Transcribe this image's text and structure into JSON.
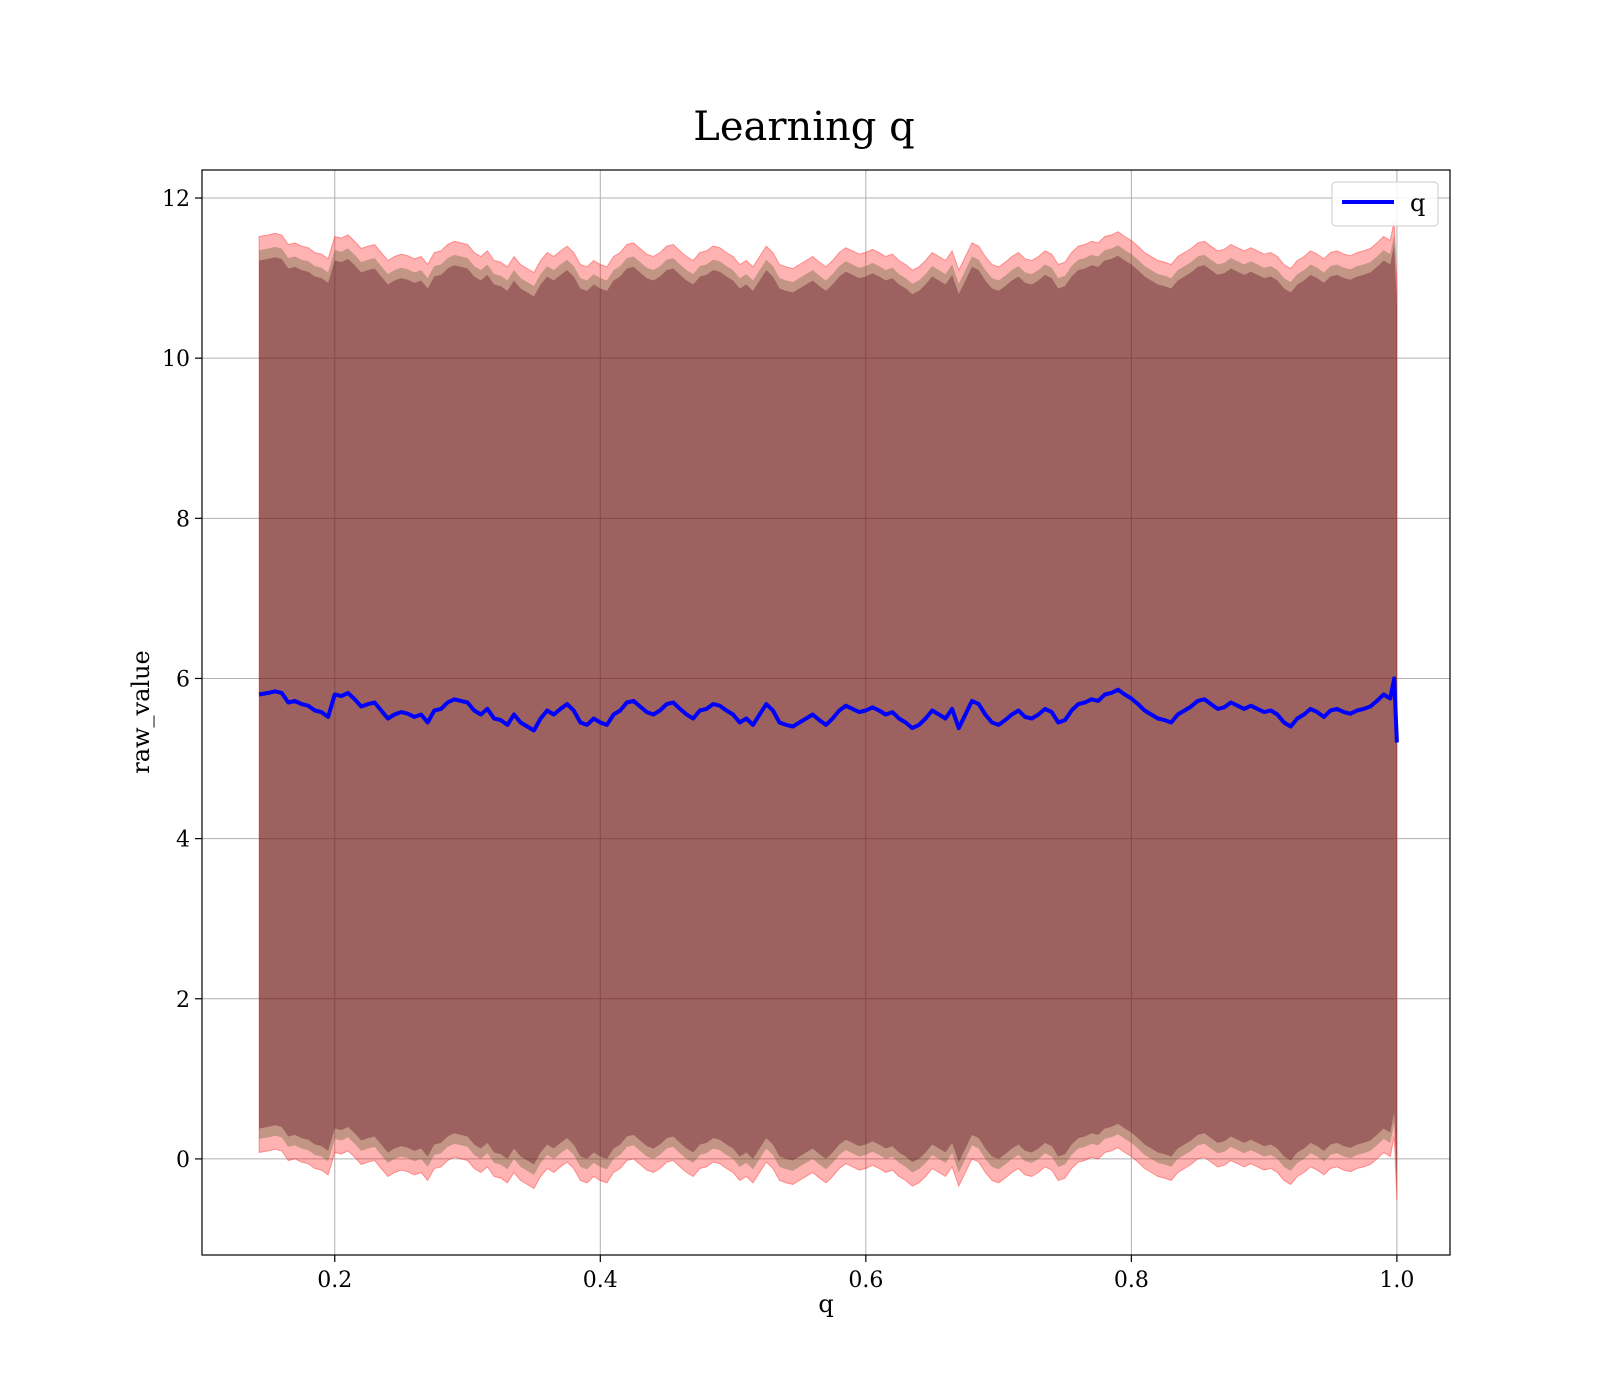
{
  "chart_data": {
    "type": "line",
    "title": "Learning q",
    "xlabel": "q",
    "ylabel": "raw_value",
    "xlim": [
      0.1,
      1.04
    ],
    "ylim": [
      -1.2,
      12.35
    ],
    "xticks": [
      0.2,
      0.4,
      0.6,
      0.8,
      1.0
    ],
    "xtick_labels": [
      "0.2",
      "0.4",
      "0.6",
      "0.8",
      "1.0"
    ],
    "yticks": [
      0,
      2,
      4,
      6,
      8,
      10,
      12
    ],
    "ytick_labels": [
      "0",
      "2",
      "4",
      "6",
      "8",
      "10",
      "12"
    ],
    "grid": true,
    "legend": {
      "position": "top-right",
      "entries": [
        "q"
      ]
    },
    "colors": {
      "line": "#0000ff",
      "outer_band": "#ff0000",
      "inner_band": "#4f5f2f",
      "core_band": "#58001a"
    },
    "series": [
      {
        "name": "q",
        "x": [
          0.143,
          0.15,
          0.155,
          0.16,
          0.165,
          0.17,
          0.175,
          0.18,
          0.185,
          0.19,
          0.195,
          0.2,
          0.205,
          0.21,
          0.215,
          0.22,
          0.225,
          0.23,
          0.235,
          0.24,
          0.245,
          0.25,
          0.255,
          0.26,
          0.265,
          0.27,
          0.275,
          0.28,
          0.285,
          0.29,
          0.295,
          0.3,
          0.305,
          0.31,
          0.315,
          0.32,
          0.325,
          0.33,
          0.335,
          0.34,
          0.345,
          0.35,
          0.355,
          0.36,
          0.365,
          0.37,
          0.375,
          0.38,
          0.385,
          0.39,
          0.395,
          0.4,
          0.405,
          0.41,
          0.415,
          0.42,
          0.425,
          0.43,
          0.435,
          0.44,
          0.445,
          0.45,
          0.455,
          0.46,
          0.465,
          0.47,
          0.475,
          0.48,
          0.485,
          0.49,
          0.495,
          0.5,
          0.505,
          0.51,
          0.515,
          0.52,
          0.525,
          0.53,
          0.535,
          0.54,
          0.545,
          0.55,
          0.555,
          0.56,
          0.565,
          0.57,
          0.575,
          0.58,
          0.585,
          0.59,
          0.595,
          0.6,
          0.605,
          0.61,
          0.615,
          0.62,
          0.625,
          0.63,
          0.635,
          0.64,
          0.645,
          0.65,
          0.655,
          0.66,
          0.665,
          0.67,
          0.675,
          0.68,
          0.685,
          0.69,
          0.695,
          0.7,
          0.705,
          0.71,
          0.715,
          0.72,
          0.725,
          0.73,
          0.735,
          0.74,
          0.745,
          0.75,
          0.755,
          0.76,
          0.765,
          0.77,
          0.775,
          0.78,
          0.785,
          0.79,
          0.795,
          0.8,
          0.805,
          0.81,
          0.815,
          0.82,
          0.825,
          0.83,
          0.835,
          0.84,
          0.845,
          0.85,
          0.855,
          0.86,
          0.865,
          0.87,
          0.875,
          0.88,
          0.885,
          0.89,
          0.895,
          0.9,
          0.905,
          0.91,
          0.915,
          0.92,
          0.925,
          0.93,
          0.935,
          0.94,
          0.945,
          0.95,
          0.955,
          0.96,
          0.965,
          0.97,
          0.975,
          0.98,
          0.985,
          0.99,
          0.995,
          0.998,
          1.0
        ],
        "y": [
          5.8,
          5.82,
          5.84,
          5.82,
          5.7,
          5.72,
          5.68,
          5.66,
          5.6,
          5.58,
          5.52,
          5.8,
          5.78,
          5.82,
          5.74,
          5.65,
          5.68,
          5.7,
          5.6,
          5.5,
          5.55,
          5.58,
          5.56,
          5.52,
          5.55,
          5.45,
          5.6,
          5.62,
          5.7,
          5.74,
          5.72,
          5.7,
          5.6,
          5.55,
          5.62,
          5.5,
          5.48,
          5.42,
          5.55,
          5.45,
          5.4,
          5.35,
          5.5,
          5.6,
          5.55,
          5.62,
          5.68,
          5.6,
          5.45,
          5.42,
          5.5,
          5.45,
          5.42,
          5.55,
          5.6,
          5.7,
          5.72,
          5.65,
          5.58,
          5.55,
          5.6,
          5.68,
          5.7,
          5.62,
          5.55,
          5.5,
          5.6,
          5.62,
          5.68,
          5.66,
          5.6,
          5.55,
          5.45,
          5.5,
          5.42,
          5.55,
          5.68,
          5.6,
          5.45,
          5.42,
          5.4,
          5.45,
          5.5,
          5.55,
          5.48,
          5.42,
          5.5,
          5.6,
          5.66,
          5.62,
          5.58,
          5.6,
          5.64,
          5.6,
          5.55,
          5.58,
          5.5,
          5.45,
          5.38,
          5.42,
          5.5,
          5.6,
          5.55,
          5.5,
          5.62,
          5.38,
          5.55,
          5.72,
          5.68,
          5.55,
          5.45,
          5.42,
          5.48,
          5.55,
          5.6,
          5.52,
          5.5,
          5.55,
          5.62,
          5.58,
          5.45,
          5.48,
          5.6,
          5.68,
          5.7,
          5.74,
          5.72,
          5.8,
          5.82,
          5.86,
          5.8,
          5.75,
          5.68,
          5.6,
          5.55,
          5.5,
          5.48,
          5.45,
          5.55,
          5.6,
          5.65,
          5.72,
          5.74,
          5.68,
          5.62,
          5.64,
          5.7,
          5.66,
          5.62,
          5.66,
          5.62,
          5.58,
          5.6,
          5.55,
          5.45,
          5.4,
          5.5,
          5.55,
          5.62,
          5.58,
          5.52,
          5.6,
          5.62,
          5.58,
          5.56,
          5.6,
          5.62,
          5.65,
          5.72,
          5.8,
          5.75,
          6.0,
          5.2
        ]
      }
    ]
  },
  "legend": {
    "label": "q"
  }
}
